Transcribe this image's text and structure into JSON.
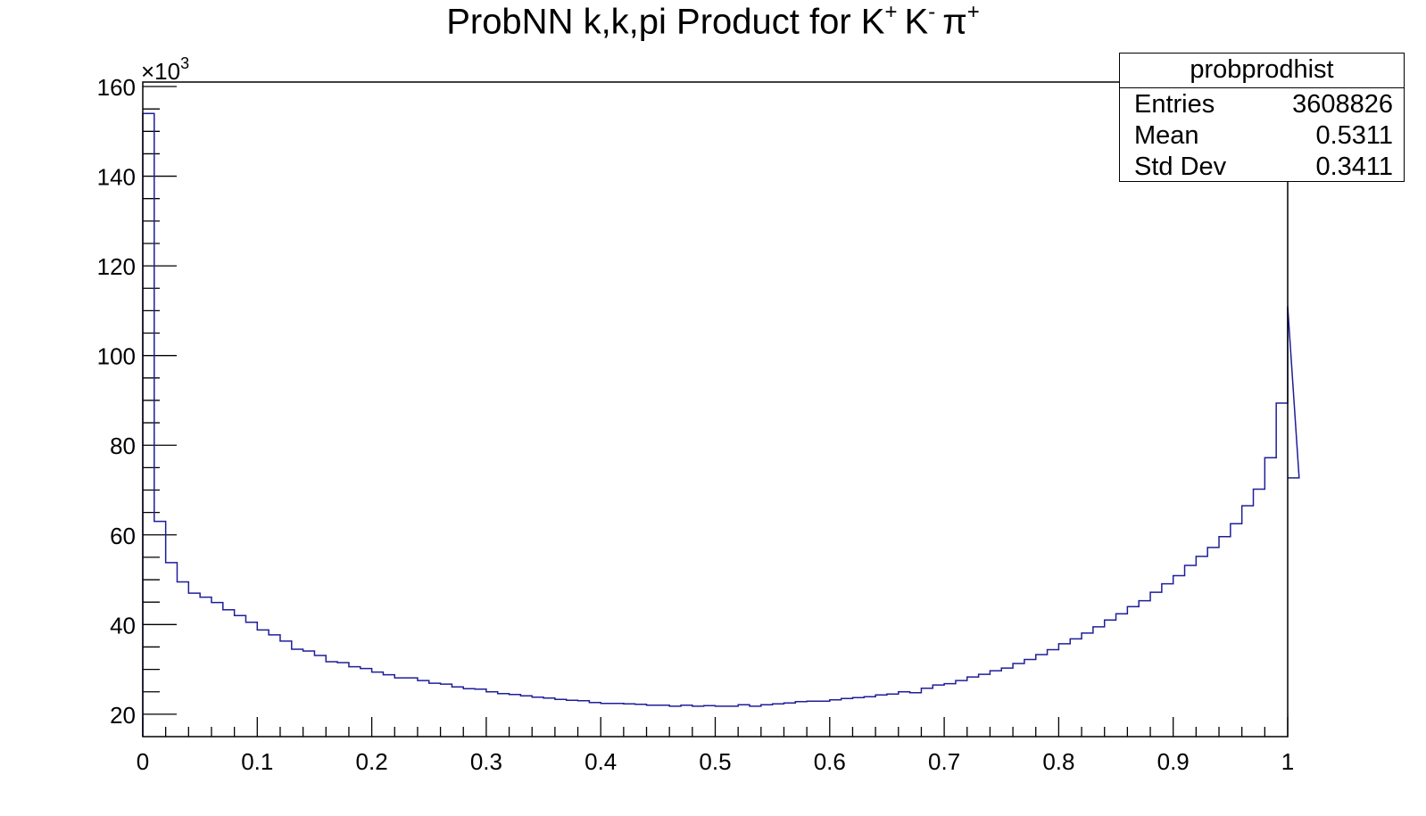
{
  "title": {
    "main": "ProbNN k,k,pi Product for K",
    "sup1": "+",
    "mid": "K",
    "sup2": "-",
    "pi": "π",
    "sup3": "+"
  },
  "stats": {
    "name": "probprodhist",
    "rows": [
      {
        "label": "Entries",
        "value": "3608826"
      },
      {
        "label": "Mean",
        "value": "0.5311"
      },
      {
        "label": "Std Dev",
        "value": "0.3411"
      }
    ]
  },
  "chart_data": {
    "type": "bar",
    "histogram": true,
    "line_color": "#1e1e9a",
    "xlim": [
      0,
      1
    ],
    "ylim": [
      15,
      161
    ],
    "y_multiplier_label": "×10",
    "y_multiplier_exp": "3",
    "x_ticks": [
      "0",
      "0.1",
      "0.2",
      "0.3",
      "0.4",
      "0.5",
      "0.6",
      "0.7",
      "0.8",
      "0.9",
      "1"
    ],
    "y_ticks": [
      "20",
      "40",
      "60",
      "80",
      "100",
      "120",
      "140",
      "160"
    ],
    "bin_width": 0.01,
    "values": [
      154,
      63,
      53.8,
      49.5,
      47,
      46.1,
      44.9,
      43.3,
      42,
      40.5,
      38.8,
      37.7,
      36.3,
      34.5,
      34.1,
      33.1,
      31.7,
      31.5,
      30.6,
      30.2,
      29.4,
      28.8,
      28.1,
      28.1,
      27.5,
      26.9,
      26.7,
      26.1,
      25.7,
      25.6,
      25,
      24.6,
      24.4,
      24.1,
      23.8,
      23.6,
      23.3,
      23.1,
      23,
      22.6,
      22.4,
      22.4,
      22.3,
      22.2,
      22,
      22,
      21.8,
      22,
      21.8,
      21.9,
      21.8,
      21.8,
      22.1,
      21.8,
      22.1,
      22.3,
      22.5,
      22.8,
      22.9,
      22.9,
      23.2,
      23.5,
      23.7,
      23.9,
      24.3,
      24.5,
      25,
      24.8,
      25.8,
      26.5,
      26.8,
      27.5,
      28.3,
      28.9,
      29.7,
      30.3,
      31.3,
      32.2,
      33.3,
      34.4,
      35.7,
      36.8,
      38.1,
      39.5,
      41,
      42.4,
      44,
      45.3,
      47.2,
      49.1,
      50.9,
      53.2,
      55.2,
      57.2,
      59.6,
      62.5,
      66.5,
      70.2,
      77.2,
      89.4,
      111,
      72.7
    ]
  }
}
